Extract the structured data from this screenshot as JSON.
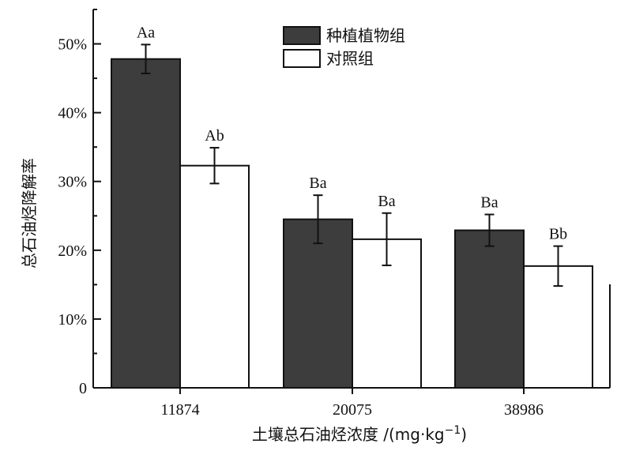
{
  "chart_data": {
    "type": "bar",
    "title": "",
    "xlabel": "土壤总石油烃浓度 /(mg·kg",
    "xlabel_sup": "−1",
    "xlabel_close": ")",
    "ylabel": "总石油烃降解率",
    "categories": [
      "11874",
      "20075",
      "38986"
    ],
    "ylim": [
      0,
      55
    ],
    "yticks": [
      0,
      10,
      20,
      30,
      40,
      50
    ],
    "ytick_labels": [
      "0",
      "10%",
      "20%",
      "30%",
      "40%",
      "50%"
    ],
    "grid": false,
    "legend_position": "top-center",
    "series": [
      {
        "name": "种植植物组",
        "color": "#3d3d3d",
        "values": [
          47.8,
          24.5,
          22.9
        ],
        "errors": [
          2.1,
          3.5,
          2.3
        ],
        "labels": [
          "Aa",
          "Ba",
          "Ba"
        ]
      },
      {
        "name": "对照组",
        "color": "#ffffff",
        "values": [
          32.3,
          21.6,
          17.7
        ],
        "errors": [
          2.6,
          3.8,
          2.9
        ],
        "labels": [
          "Ab",
          "Ba",
          "Bb"
        ]
      }
    ]
  }
}
